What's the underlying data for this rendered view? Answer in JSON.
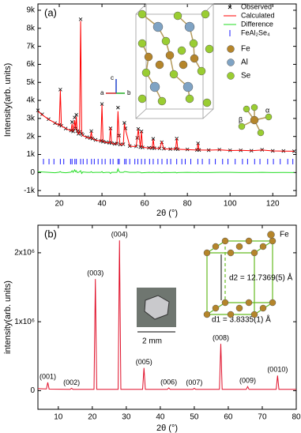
{
  "chart_data": [
    {
      "type": "line",
      "panel_label": "(a)",
      "xlabel": "2θ (°)",
      "ylabel": "Intensity(arb. units)",
      "xlim": [
        10,
        131
      ],
      "xticks": [
        20,
        40,
        60,
        80,
        100,
        120
      ],
      "ylim": [
        -1300,
        9350
      ],
      "yticks": [
        {
          "value": -1000,
          "label": "-1k"
        },
        0,
        {
          "value": 1000,
          "label": "1k"
        },
        {
          "value": 2000,
          "label": "2k"
        },
        {
          "value": 3000,
          "label": "3k"
        },
        {
          "value": 4000,
          "label": "4k"
        },
        {
          "value": 5000,
          "label": "5k"
        },
        {
          "value": 6000,
          "label": "6k"
        },
        {
          "value": 7000,
          "label": "7k"
        },
        {
          "value": 8000,
          "label": "8k"
        },
        {
          "value": 9000,
          "label": "9k"
        }
      ],
      "legend": "upper right",
      "x": [
        10,
        12,
        15,
        18,
        20,
        20.5,
        21,
        23,
        25.5,
        26,
        26.5,
        27.2,
        27.6,
        28,
        28.4,
        29,
        29.5,
        30,
        30.5,
        31,
        33,
        34.5,
        35,
        35.5,
        37,
        39.5,
        40,
        40.5,
        42,
        43.5,
        44,
        44.5,
        46,
        47,
        47.5,
        48,
        48.5,
        50,
        50.5,
        51,
        53,
        56,
        56.5,
        57,
        58,
        58.5,
        59,
        62,
        63.5,
        64,
        64.5,
        67,
        68,
        69,
        72,
        74.5,
        75,
        75.5,
        80,
        84.5,
        85,
        85.5,
        90,
        95,
        100,
        105,
        110,
        115,
        120,
        125,
        130
      ],
      "series": [
        {
          "name": "Observed",
          "color": "#000000",
          "marker": "x",
          "values": [
            3450,
            3230,
            2960,
            2740,
            2640,
            4600,
            2590,
            2440,
            2330,
            2800,
            2280,
            3050,
            2450,
            3200,
            2300,
            2150,
            2250,
            8500,
            2150,
            2080,
            1960,
            1910,
            2300,
            1880,
            1810,
            1750,
            3800,
            1710,
            1680,
            1650,
            2450,
            1630,
            1590,
            1610,
            3600,
            2050,
            1550,
            1570,
            2750,
            2450,
            1470,
            1450,
            1920,
            2420,
            1410,
            2280,
            1390,
            1370,
            1360,
            1870,
            1350,
            1340,
            1680,
            1320,
            1300,
            1310,
            1880,
            1290,
            1280,
            1250,
            1620,
            1250,
            1240,
            1270,
            1230,
            1230,
            1210,
            1260,
            1200,
            1195,
            1180
          ]
        },
        {
          "name": "Calculated",
          "color": "#ff0000",
          "values": [
            3400,
            3200,
            2950,
            2750,
            2620,
            4550,
            2580,
            2450,
            2310,
            2700,
            2270,
            2900,
            2400,
            3100,
            2300,
            2140,
            2200,
            8400,
            2200,
            2050,
            1950,
            1900,
            2250,
            1880,
            1800,
            1740,
            3750,
            1720,
            1670,
            1640,
            2500,
            1620,
            1580,
            1600,
            3400,
            2000,
            1540,
            1560,
            2700,
            2400,
            1460,
            1440,
            1900,
            2400,
            1400,
            2300,
            1400,
            1360,
            1360,
            1850,
            1350,
            1330,
            1700,
            1315,
            1300,
            1300,
            1900,
            1290,
            1270,
            1250,
            1600,
            1250,
            1240,
            1260,
            1220,
            1230,
            1210,
            1250,
            1200,
            1190,
            1180
          ]
        },
        {
          "name": "Difference",
          "color": "#22dd22",
          "values": [
            50,
            30,
            10,
            -10,
            20,
            50,
            10,
            -10,
            20,
            100,
            10,
            150,
            50,
            100,
            0,
            10,
            50,
            100,
            -50,
            30,
            10,
            10,
            50,
            0,
            10,
            10,
            50,
            -10,
            10,
            10,
            -50,
            10,
            10,
            10,
            200,
            50,
            10,
            10,
            50,
            50,
            10,
            10,
            20,
            20,
            10,
            -20,
            -10,
            10,
            0,
            20,
            0,
            10,
            -20,
            5,
            0,
            10,
            -20,
            0,
            10,
            0,
            20,
            0,
            0,
            10,
            10,
            0,
            0,
            10,
            0,
            5,
            0
          ]
        }
      ],
      "reflections": {
        "name": "FeAl₂Se₄",
        "color": "#1a1aff",
        "x": [
          12.6,
          15.2,
          17.5,
          20.5,
          22.1,
          25.3,
          26.0,
          27.3,
          28.0,
          30.0,
          31.2,
          33.0,
          35.1,
          36.4,
          38.2,
          40.0,
          41.5,
          43.9,
          45.2,
          47.5,
          48.1,
          50.6,
          51.3,
          53.0,
          55.4,
          56.8,
          58.5,
          60.1,
          62.3,
          64.0,
          66.2,
          68.1,
          70.5,
          72.2,
          75.0,
          77.4,
          79.0,
          81.6,
          84.9,
          87.0,
          90.3,
          93.1,
          96.5,
          99.0,
          102.4,
          105.8,
          108.2,
          111.5,
          114.0,
          117.6,
          120.3,
          123.5,
          127.0,
          129.4
        ]
      },
      "inset": {
        "atoms": [
          {
            "name": "Fe",
            "color": "#b5852a"
          },
          {
            "name": "Al",
            "color": "#7fa3c4"
          },
          {
            "name": "Se",
            "color": "#9acd32"
          }
        ],
        "axes": [
          "c",
          "a",
          "b"
        ],
        "angles": [
          "α",
          "β"
        ]
      }
    },
    {
      "type": "line",
      "panel_label": "(b)",
      "xlabel": "2θ (°)",
      "ylabel": "intensity(arb. units)",
      "xlim": [
        4,
        80
      ],
      "xticks": [
        10,
        20,
        30,
        40,
        50,
        60,
        70,
        80
      ],
      "ylim": [
        -270000,
        2400000
      ],
      "yticks": [
        0,
        {
          "value": 1000000,
          "label": "1x10⁶"
        },
        {
          "value": 2000000,
          "label": "2x10⁶"
        }
      ],
      "color": "#e0102a",
      "x": [
        4,
        6.5,
        6.9,
        7.3,
        13.5,
        13.9,
        14.3,
        20.5,
        20.9,
        21.3,
        27.6,
        28.0,
        28.4,
        34.8,
        35.2,
        35.6,
        42.1,
        42.5,
        42.9,
        49.6,
        50.0,
        50.4,
        57.4,
        57.8,
        58.2,
        65.3,
        65.7,
        66.1,
        74.1,
        74.5,
        74.9,
        80
      ],
      "values": [
        30000,
        25000,
        120000,
        22000,
        20000,
        35000,
        20000,
        20000,
        1620000,
        20000,
        20000,
        2180000,
        20000,
        20000,
        330000,
        20000,
        20000,
        40000,
        20000,
        20000,
        35000,
        20000,
        20000,
        680000,
        20000,
        20000,
        60000,
        20000,
        20000,
        220000,
        20000,
        20000
      ],
      "peak_labels": [
        {
          "x": 6.9,
          "label": "(001)"
        },
        {
          "x": 13.9,
          "label": "(002)"
        },
        {
          "x": 20.9,
          "label": "(003)"
        },
        {
          "x": 28.0,
          "label": "(004)"
        },
        {
          "x": 35.2,
          "label": "(005)"
        },
        {
          "x": 42.5,
          "label": "(006)"
        },
        {
          "x": 50.0,
          "label": "(007)"
        },
        {
          "x": 57.8,
          "label": "(008)"
        },
        {
          "x": 65.7,
          "label": "(009)"
        },
        {
          "x": 74.5,
          "label": "(0010)"
        }
      ],
      "inset": {
        "atoms": [
          {
            "name": "Fe",
            "color": "#b5852a"
          }
        ],
        "scale_bar": "2 mm",
        "d2": "d2 = 12.7369(5) Å",
        "d1": "d1 = 3.8335(1) Å"
      }
    }
  ]
}
